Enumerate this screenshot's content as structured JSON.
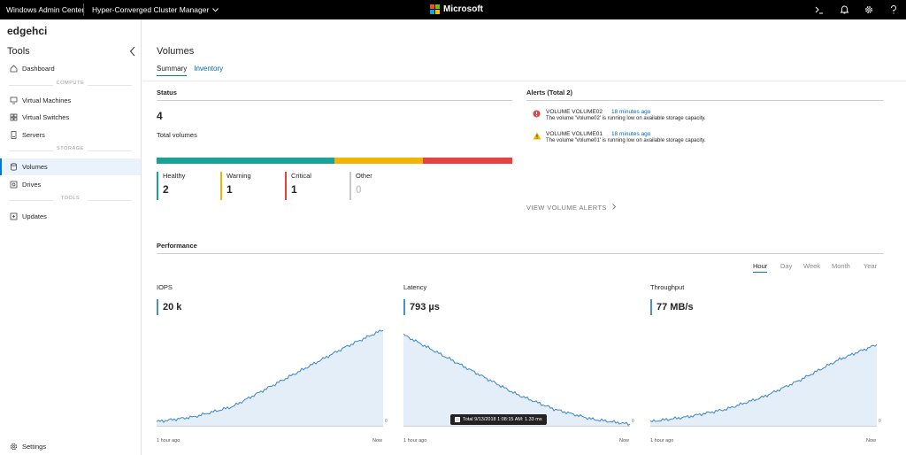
{
  "topbar": {
    "app_title": "Windows Admin Center",
    "tool_selector": "Hyper-Converged Cluster Manager",
    "brand": "Microsoft",
    "icons": [
      "terminal-icon",
      "bell-icon",
      "gear-icon",
      "help-icon"
    ]
  },
  "sidebar": {
    "connection": "edgehci",
    "tools_header": "Tools",
    "sections": {
      "compute": "COMPUTE",
      "storage": "STORAGE",
      "tools": "TOOLS"
    },
    "items": {
      "dashboard": "Dashboard",
      "virtual_machines": "Virtual Machines",
      "virtual_switches": "Virtual Switches",
      "servers": "Servers",
      "volumes": "Volumes",
      "drives": "Drives",
      "updates": "Updates",
      "settings": "Settings"
    }
  },
  "main": {
    "title": "Volumes",
    "tabs": {
      "summary": "Summary",
      "inventory": "Inventory"
    },
    "status": {
      "header": "Status",
      "total": "4",
      "total_label": "Total volumes",
      "colors": {
        "healthy": "#17a398",
        "warning": "#f2b400",
        "critical": "#e8413f",
        "other": "#c8c8c8"
      },
      "bar_fractions": {
        "healthy": 0.5,
        "warning": 0.25,
        "critical": 0.25
      },
      "healthy": {
        "label": "Healthy",
        "value": "2"
      },
      "warning": {
        "label": "Warning",
        "value": "1"
      },
      "critical": {
        "label": "Critical",
        "value": "1"
      },
      "other": {
        "label": "Other",
        "value": "0"
      }
    },
    "alerts": {
      "header": "Alerts (Total 2)",
      "items": [
        {
          "title": "VOLUME VOLUME02",
          "time": "18 minutes ago",
          "desc": "The volume 'Volume02' is running low on available storage capacity.",
          "severity": "critical"
        },
        {
          "title": "VOLUME VOLUME01",
          "time": "18 minutes ago",
          "desc": "The volume 'Volume01' is running low on available storage capacity.",
          "severity": "warning"
        }
      ],
      "view_link": "VIEW VOLUME ALERTS"
    },
    "performance": {
      "header": "Performance",
      "ranges": [
        "Hour",
        "Day",
        "Week",
        "Month",
        "Year"
      ],
      "active_range": "Hour",
      "charts": [
        {
          "label": "IOPS",
          "value": "20 k",
          "start": "1 hour ago",
          "end": "Now",
          "zero": "0"
        },
        {
          "label": "Latency",
          "value": "793 µs",
          "start": "1 hour ago",
          "end": "Now",
          "zero": "0"
        },
        {
          "label": "Throughput",
          "value": "77 MB/s",
          "start": "1 hour ago",
          "end": "Now",
          "zero": "0"
        }
      ],
      "tooltip": "Total 9/13/2018 1:08:15 AM: 1.33 ms"
    }
  },
  "chart_data": [
    {
      "type": "area",
      "title": "IOPS",
      "x": [
        0,
        10,
        20,
        30,
        40,
        50,
        60
      ],
      "xlabel": "",
      "ylabel": "",
      "values": [
        0.1,
        0.2,
        0.4,
        0.8,
        1.2,
        1.6,
        1.95
      ],
      "ylim": [
        0,
        2.1
      ]
    },
    {
      "type": "area",
      "title": "Latency",
      "x": [
        0,
        10,
        20,
        30,
        40,
        50,
        60
      ],
      "xlabel": "",
      "ylabel": "",
      "values": [
        1.85,
        1.45,
        1.05,
        0.65,
        0.35,
        0.15,
        0.05
      ],
      "ylim": [
        0,
        2.1
      ]
    },
    {
      "type": "area",
      "title": "Throughput",
      "x": [
        0,
        10,
        20,
        30,
        40,
        50,
        60
      ],
      "xlabel": "",
      "ylabel": "",
      "values": [
        0.1,
        0.2,
        0.35,
        0.6,
        0.95,
        1.35,
        1.65
      ],
      "ylim": [
        0,
        2.1
      ]
    }
  ]
}
